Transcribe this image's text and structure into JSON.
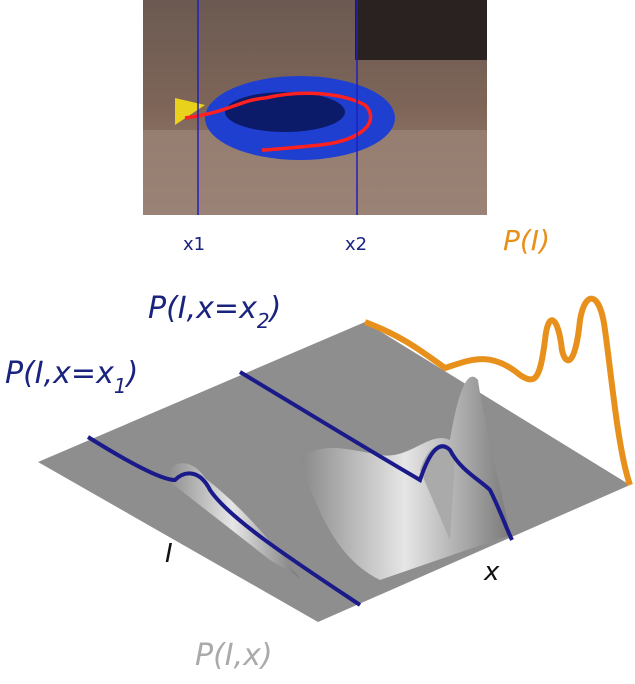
{
  "photo_labels": {
    "x1": "x1",
    "x2": "x2"
  },
  "marginal_label": "P(I)",
  "slice_labels": [
    {
      "main": "P(I,x=x",
      "sub": "1",
      "close": ")"
    },
    {
      "main": "P(I,x=x",
      "sub": "2",
      "close": ")"
    }
  ],
  "axis_labels": {
    "intensity": "I",
    "position": "x"
  },
  "joint_label": "P(I,x)"
}
